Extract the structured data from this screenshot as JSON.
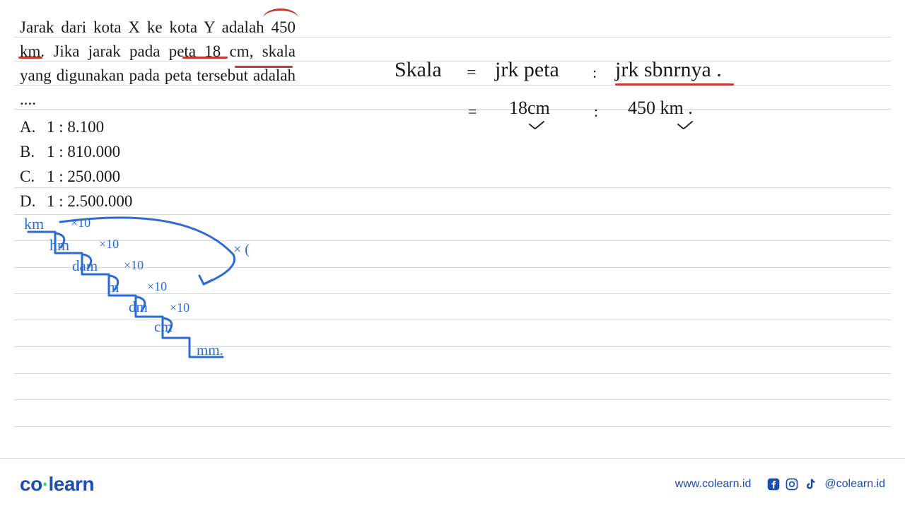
{
  "question": {
    "text": "Jarak dari kota X ke kota Y adalah 450 km. Jika jarak pada peta 18 cm, skala yang digunakan pada peta tersebut adalah ....",
    "options": [
      {
        "letter": "A.",
        "value": "1 : 8.100"
      },
      {
        "letter": "B.",
        "value": "1 : 810.000"
      },
      {
        "letter": "C.",
        "value": "1 : 250.000"
      },
      {
        "letter": "D.",
        "value": "1 : 2.500.000"
      }
    ]
  },
  "annotations": {
    "red_accent_color": "#c43a2e",
    "blue_ink_color": "#2a6bd4",
    "black_ink_color": "#1a1a1a"
  },
  "handwriting": {
    "line1": {
      "lhs": "Skala",
      "eq": "=",
      "mid": "jrk peta",
      "col": ":",
      "rhs": "jrk sbnrnya ."
    },
    "line2": {
      "eq": "=",
      "mid": "18cm",
      "col": ":",
      "rhs": "450 km ."
    }
  },
  "stair": {
    "units": [
      "km",
      "hm",
      "dam",
      "m",
      "dm",
      "cm",
      "mm"
    ],
    "step_label": "×10",
    "big_label": "× (",
    "mm_suffix": "."
  },
  "footer": {
    "logo_left": "co",
    "logo_right": "learn",
    "url": "www.colearn.id",
    "handle": "@colearn.id"
  },
  "ruled_line_positions": [
    52,
    86,
    120,
    154,
    265,
    303,
    340,
    378,
    415,
    452,
    490,
    528,
    565,
    603
  ]
}
